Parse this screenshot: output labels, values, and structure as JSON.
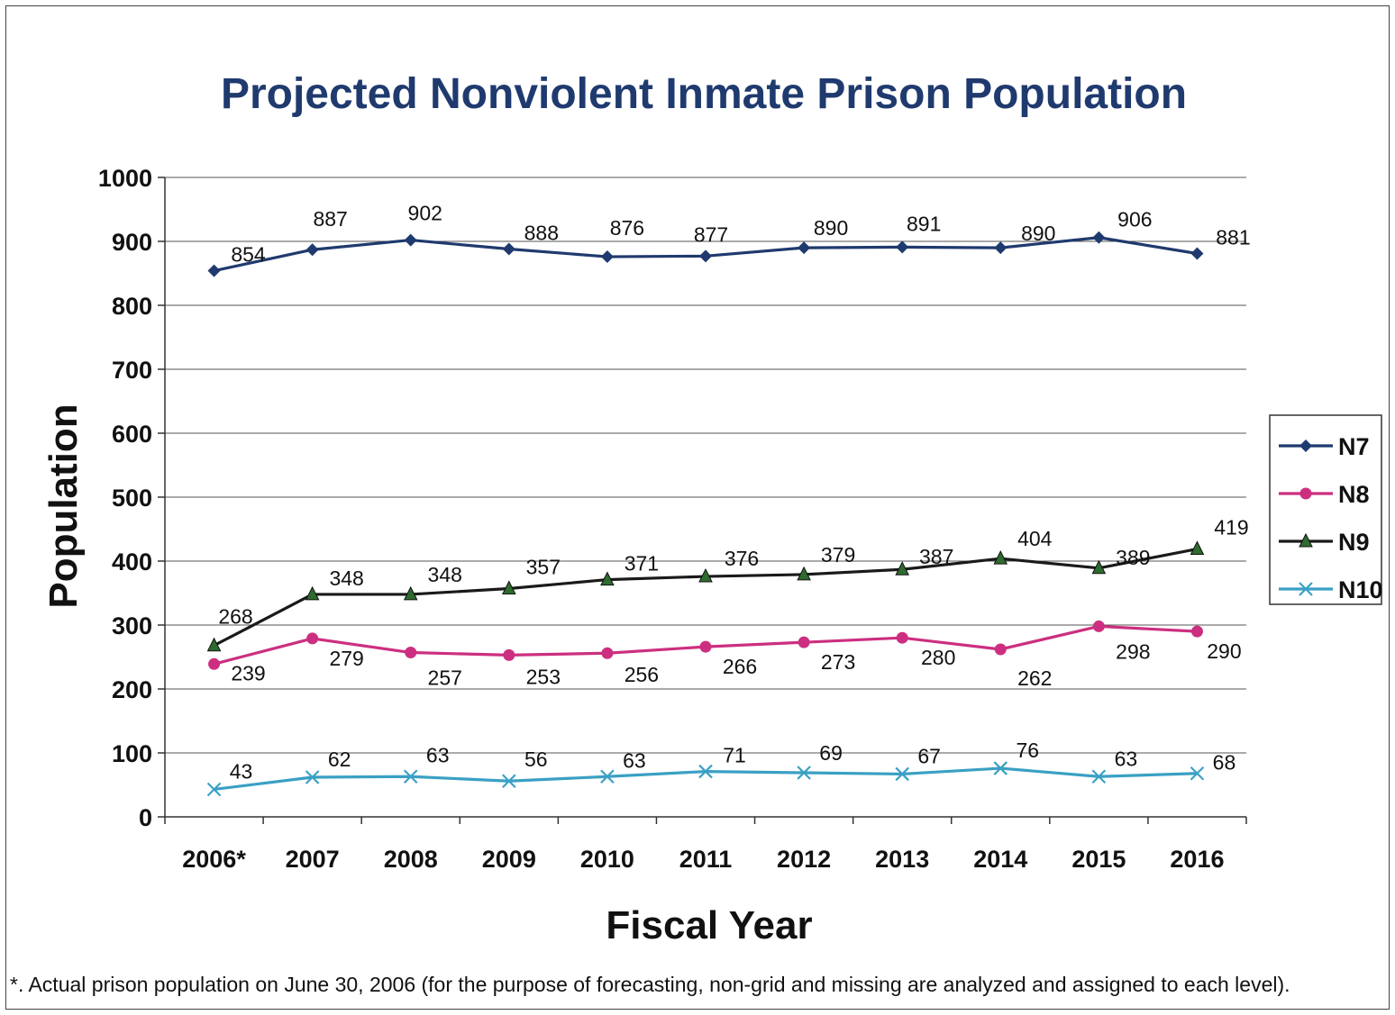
{
  "chart_data": {
    "type": "line",
    "title": "Projected Nonviolent Inmate Prison Population",
    "xlabel": "Fiscal Year",
    "ylabel": "Population",
    "categories": [
      "2006*",
      "2007",
      "2008",
      "2009",
      "2010",
      "2011",
      "2012",
      "2013",
      "2014",
      "2015",
      "2016"
    ],
    "ylim": [
      0,
      1000
    ],
    "yticks": [
      0,
      100,
      200,
      300,
      400,
      500,
      600,
      700,
      800,
      900,
      1000
    ],
    "grid": true,
    "legend_position": "right",
    "series": [
      {
        "name": "N7",
        "color": "#1f3a6e",
        "marker": "diamond",
        "values": [
          854,
          887,
          902,
          888,
          876,
          877,
          890,
          891,
          890,
          906,
          881
        ]
      },
      {
        "name": "N8",
        "color": "#cc2f80",
        "marker": "circle",
        "values": [
          239,
          279,
          257,
          253,
          256,
          266,
          273,
          280,
          262,
          298,
          290
        ]
      },
      {
        "name": "N9",
        "color": "#1a1a1a",
        "marker_color": "#2e6b2e",
        "marker": "triangle",
        "values": [
          268,
          348,
          348,
          357,
          371,
          376,
          379,
          387,
          404,
          389,
          419
        ]
      },
      {
        "name": "N10",
        "color": "#3aa0c4",
        "marker": "x",
        "values": [
          43,
          62,
          63,
          56,
          63,
          71,
          69,
          67,
          76,
          63,
          68
        ]
      }
    ],
    "footnote": "*. Actual prison population on June 30, 2006 (for the purpose of forecasting, non-grid and missing are analyzed and assigned to each level).",
    "title_color": "#1f3a6e"
  }
}
